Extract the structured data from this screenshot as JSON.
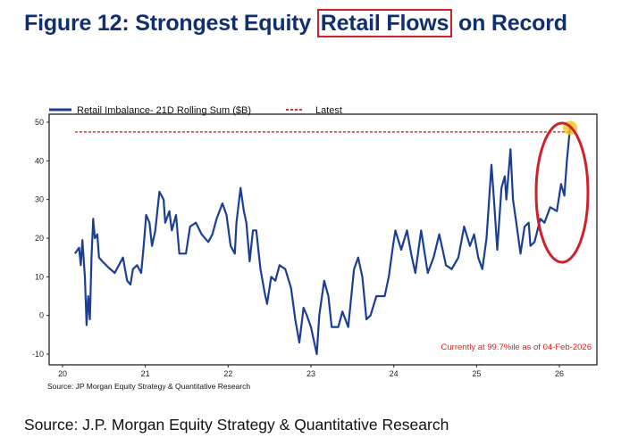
{
  "title": {
    "prefix": "Figure 12: Strongest Equity ",
    "highlight": "Retail Flows",
    "suffix": " on Record"
  },
  "source_footer": "Source: J.P. Morgan Equity Strategy & Quantitative Research",
  "colors": {
    "title": "#0f2f6e",
    "series": "#1a3f94",
    "latest": "#e03030",
    "annotation_ellipse": "#d0202a",
    "marker": "#f5c518"
  },
  "chart_data": {
    "type": "line",
    "xlabel": "",
    "ylabel": "",
    "xlim": [
      19.9,
      26.45
    ],
    "ylim": [
      -12,
      52
    ],
    "x_ticks": [
      "20",
      "21",
      "22",
      "23",
      "24",
      "25",
      "26"
    ],
    "y_ticks": [
      "-10",
      "0",
      "10",
      "20",
      "30",
      "40",
      "50"
    ],
    "grid": false,
    "legend_position": "top-left",
    "legend": [
      "Retail Imbalance- 21D Rolling Sum ($B)",
      "Latest"
    ],
    "annotation": "Currently at 99.7%ile as of 04-Feb-2026",
    "chart_source": "Source: JP Morgan Equity Strategy & Quantitative Research",
    "latest_value": 47.5,
    "series": [
      {
        "name": "Retail Imbalance- 21D Rolling Sum ($B)",
        "points": [
          [
            20.15,
            16
          ],
          [
            20.2,
            17.5
          ],
          [
            20.22,
            13
          ],
          [
            20.24,
            19.5
          ],
          [
            20.27,
            10
          ],
          [
            20.29,
            -2.5
          ],
          [
            20.31,
            5
          ],
          [
            20.33,
            -1
          ],
          [
            20.35,
            15
          ],
          [
            20.37,
            25
          ],
          [
            20.39,
            20
          ],
          [
            20.42,
            21
          ],
          [
            20.44,
            15
          ],
          [
            20.48,
            14
          ],
          [
            20.55,
            12.5
          ],
          [
            20.63,
            11
          ],
          [
            20.73,
            15
          ],
          [
            20.78,
            9
          ],
          [
            20.82,
            8
          ],
          [
            20.85,
            12
          ],
          [
            20.9,
            13
          ],
          [
            20.95,
            11
          ],
          [
            20.98,
            18
          ],
          [
            21.01,
            26
          ],
          [
            21.05,
            24
          ],
          [
            21.08,
            18
          ],
          [
            21.12,
            22
          ],
          [
            21.17,
            32
          ],
          [
            21.22,
            30
          ],
          [
            21.24,
            24
          ],
          [
            21.29,
            27
          ],
          [
            21.32,
            22
          ],
          [
            21.37,
            26
          ],
          [
            21.41,
            16
          ],
          [
            21.49,
            16
          ],
          [
            21.54,
            23
          ],
          [
            21.61,
            24
          ],
          [
            21.68,
            21
          ],
          [
            21.76,
            19
          ],
          [
            21.81,
            21
          ],
          [
            21.86,
            25
          ],
          [
            21.93,
            29
          ],
          [
            21.98,
            26
          ],
          [
            22.03,
            18
          ],
          [
            22.08,
            16
          ],
          [
            22.1,
            24
          ],
          [
            22.15,
            33
          ],
          [
            22.19,
            27
          ],
          [
            22.22,
            24
          ],
          [
            22.26,
            14
          ],
          [
            22.3,
            22
          ],
          [
            22.34,
            22
          ],
          [
            22.39,
            12
          ],
          [
            22.44,
            6
          ],
          [
            22.47,
            3
          ],
          [
            22.52,
            10
          ],
          [
            22.57,
            9
          ],
          [
            22.62,
            13
          ],
          [
            22.69,
            12
          ],
          [
            22.76,
            7
          ],
          [
            22.81,
            -1
          ],
          [
            22.86,
            -7
          ],
          [
            22.91,
            2
          ],
          [
            22.95,
            0
          ],
          [
            23.0,
            -3
          ],
          [
            23.07,
            -10
          ],
          [
            23.1,
            0
          ],
          [
            23.16,
            9
          ],
          [
            23.21,
            5
          ],
          [
            23.25,
            -3
          ],
          [
            23.33,
            -3
          ],
          [
            23.38,
            1
          ],
          [
            23.45,
            -3
          ],
          [
            23.52,
            12
          ],
          [
            23.57,
            15
          ],
          [
            23.62,
            10
          ],
          [
            23.67,
            -1
          ],
          [
            23.72,
            0
          ],
          [
            23.79,
            5
          ],
          [
            23.89,
            5
          ],
          [
            23.94,
            10
          ],
          [
            23.99,
            18
          ],
          [
            24.02,
            22
          ],
          [
            24.09,
            17
          ],
          [
            24.16,
            22
          ],
          [
            24.21,
            16
          ],
          [
            24.26,
            11
          ],
          [
            24.33,
            22
          ],
          [
            24.41,
            11
          ],
          [
            24.48,
            15
          ],
          [
            24.55,
            21
          ],
          [
            24.63,
            13
          ],
          [
            24.7,
            12
          ],
          [
            24.78,
            15
          ],
          [
            24.85,
            23
          ],
          [
            24.92,
            18
          ],
          [
            24.97,
            21
          ],
          [
            25.02,
            15
          ],
          [
            25.07,
            12
          ],
          [
            25.12,
            20
          ],
          [
            25.18,
            39
          ],
          [
            25.21,
            30
          ],
          [
            25.25,
            17
          ],
          [
            25.3,
            33
          ],
          [
            25.34,
            36
          ],
          [
            25.36,
            30
          ],
          [
            25.41,
            43
          ],
          [
            25.44,
            30
          ],
          [
            25.48,
            24
          ],
          [
            25.53,
            16
          ],
          [
            25.58,
            23
          ],
          [
            25.63,
            24
          ],
          [
            25.65,
            18
          ],
          [
            25.7,
            19
          ],
          [
            25.77,
            25
          ],
          [
            25.82,
            24
          ],
          [
            25.89,
            28
          ],
          [
            25.97,
            27
          ],
          [
            26.02,
            34
          ],
          [
            26.06,
            31
          ],
          [
            26.09,
            40
          ],
          [
            26.13,
            49
          ]
        ]
      },
      {
        "name": "Latest",
        "points": [
          [
            20.15,
            47.5
          ],
          [
            26.15,
            47.5
          ]
        ]
      }
    ]
  }
}
